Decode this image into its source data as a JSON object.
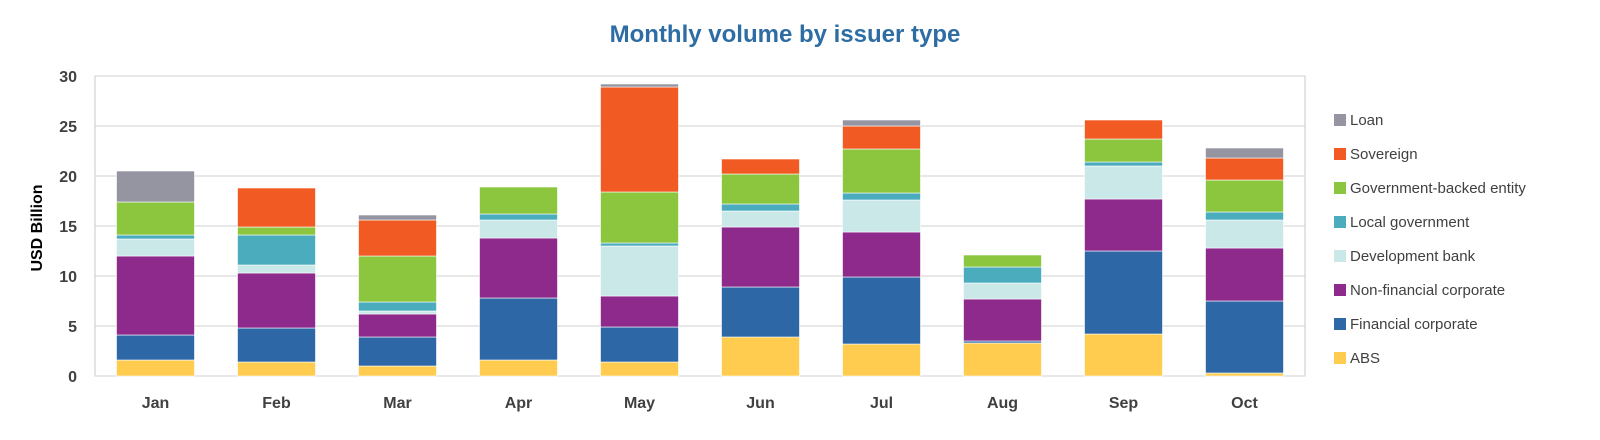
{
  "chart_data": {
    "type": "bar",
    "stacked": true,
    "title": "Monthly volume by issuer type",
    "xlabel": "",
    "ylabel": "USD Billion",
    "ylim": [
      0,
      30
    ],
    "yticks": [
      0,
      5,
      10,
      15,
      20,
      25,
      30
    ],
    "grid": true,
    "legend_position": "right",
    "categories": [
      "Jan",
      "Feb",
      "Mar",
      "Apr",
      "May",
      "Jun",
      "Jul",
      "Aug",
      "Sep",
      "Oct"
    ],
    "series": [
      {
        "name": "ABS",
        "color": "#ffcc4f",
        "values": [
          1.6,
          1.4,
          1.0,
          1.6,
          1.4,
          3.9,
          3.2,
          3.3,
          4.2,
          0.3
        ]
      },
      {
        "name": "Financial corporate",
        "color": "#2e67a6",
        "values": [
          2.5,
          3.4,
          2.9,
          6.2,
          3.5,
          5.0,
          6.7,
          0.2,
          8.3,
          7.2
        ]
      },
      {
        "name": "Non-financial corporate",
        "color": "#8e2a8c",
        "values": [
          7.9,
          5.5,
          2.3,
          6.0,
          3.1,
          6.0,
          4.5,
          4.2,
          5.2,
          5.3
        ]
      },
      {
        "name": "Development bank",
        "color": "#c9e8e7",
        "values": [
          1.7,
          0.8,
          0.3,
          1.8,
          5.0,
          1.6,
          3.2,
          1.6,
          3.3,
          2.8
        ]
      },
      {
        "name": "Local government",
        "color": "#4bacbe",
        "values": [
          0.4,
          3.0,
          0.9,
          0.6,
          0.3,
          0.7,
          0.7,
          1.6,
          0.4,
          0.8
        ]
      },
      {
        "name": "Government-backed entity",
        "color": "#8cc63f",
        "values": [
          3.3,
          0.8,
          4.6,
          2.7,
          5.1,
          3.0,
          4.4,
          1.2,
          2.3,
          3.2
        ]
      },
      {
        "name": "Sovereign",
        "color": "#f15a22",
        "values": [
          0,
          3.9,
          3.6,
          0,
          10.5,
          1.5,
          2.3,
          0,
          1.9,
          2.2
        ]
      },
      {
        "name": "Loan",
        "color": "#9595a2",
        "values": [
          3.1,
          0,
          0.5,
          0,
          0.3,
          0,
          0.6,
          0,
          0,
          1.0
        ]
      }
    ]
  }
}
